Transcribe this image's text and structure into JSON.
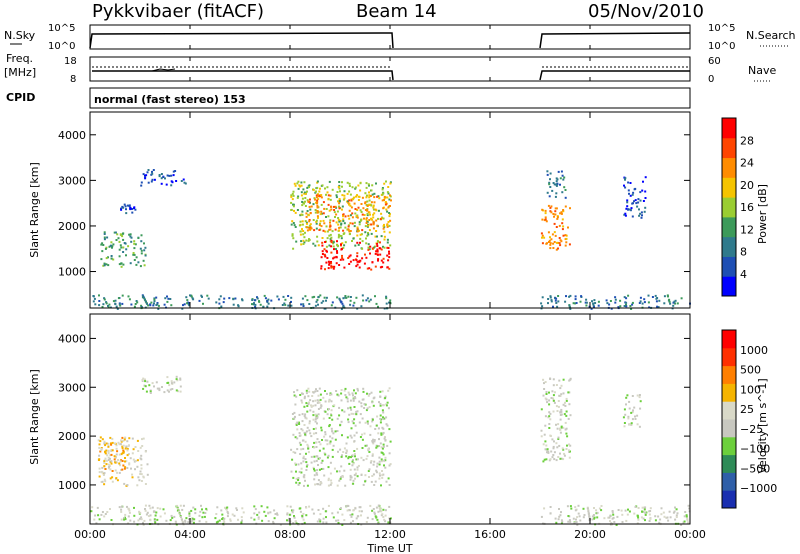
{
  "header": {
    "station": "Pykkvibaer (fitACF)",
    "beam": "Beam 14",
    "date": "05/Nov/2010"
  },
  "status_panels": {
    "nsky_label": "N.Sky",
    "nsearch_label": "N.Search",
    "freq_label_line1": "Freq.",
    "freq_label_line2": "[MHz]",
    "nave_label": "Nave",
    "cpid_label": "CPID",
    "cpid_text": "normal (fast stereo) 153",
    "noise_ticks_left": [
      "10^5",
      "10^0"
    ],
    "noise_ticks_right": [
      "10^5",
      "10^0"
    ],
    "freq_ticks_left": [
      "18",
      "8"
    ],
    "nave_ticks_right": [
      "60",
      "0"
    ]
  },
  "colors": {
    "power_scale": [
      "#0000ff",
      "#1e4fb4",
      "#2f7a8c",
      "#3c9a5a",
      "#9acd32",
      "#f5c400",
      "#ff8c00",
      "#ff4500",
      "#ff0000"
    ],
    "velocity_scale": [
      "#1a2fb0",
      "#2f5fa8",
      "#2e8b57",
      "#6ccf3c",
      "#c8c8c0",
      "#d9d9c8",
      "#f5b400",
      "#ff7f00",
      "#ff3000",
      "#ff0000"
    ]
  },
  "chart_data": [
    {
      "type": "heatmap",
      "name_key": "power",
      "ylabel": "Slant Range [km]",
      "ylim": [
        200,
        4500
      ],
      "xlim": [
        0,
        24
      ],
      "yticks": [
        1000,
        2000,
        3000,
        4000
      ],
      "colorbar_label": "Power [dB]",
      "colorbar_ticks": [
        "28",
        "24",
        "20",
        "16",
        "12",
        "8",
        "4"
      ],
      "observation_gap_hours": [
        12,
        18
      ],
      "regions": [
        {
          "t0": 0.4,
          "t1": 2.2,
          "r0": 1100,
          "r1": 1900,
          "level": 3
        },
        {
          "t0": 1.2,
          "t1": 1.8,
          "r0": 2300,
          "r1": 2500,
          "level": 1
        },
        {
          "t0": 2.0,
          "t1": 3.8,
          "r0": 2900,
          "r1": 3250,
          "level": 1
        },
        {
          "t0": 8.0,
          "t1": 12.0,
          "r0": 1500,
          "r1": 3000,
          "level": 4
        },
        {
          "t0": 8.6,
          "t1": 12.0,
          "r0": 1900,
          "r1": 2700,
          "level": 6
        },
        {
          "t0": 9.2,
          "t1": 12.0,
          "r0": 1050,
          "r1": 1700,
          "level": 8
        },
        {
          "t0": 18.0,
          "t1": 19.2,
          "r0": 1500,
          "r1": 2500,
          "level": 6
        },
        {
          "t0": 18.2,
          "t1": 19.0,
          "r0": 2600,
          "r1": 3250,
          "level": 2
        },
        {
          "t0": 21.3,
          "t1": 22.2,
          "r0": 2200,
          "r1": 3100,
          "level": 1
        },
        {
          "t0": 0.0,
          "t1": 12.0,
          "r0": 200,
          "r1": 500,
          "level": 2
        },
        {
          "t0": 18.0,
          "t1": 24.0,
          "r0": 200,
          "r1": 500,
          "level": 2
        }
      ]
    },
    {
      "type": "heatmap",
      "name_key": "velocity",
      "ylabel": "Slant Range [km]",
      "xlabel": "Time UT",
      "ylim": [
        200,
        4500
      ],
      "xlim": [
        0,
        24
      ],
      "yticks": [
        1000,
        2000,
        3000,
        4000
      ],
      "xticks": [
        "00:00",
        "04:00",
        "08:00",
        "12:00",
        "16:00",
        "20:00",
        "00:00"
      ],
      "xtick_values": [
        0,
        4,
        8,
        12,
        16,
        20,
        24
      ],
      "colorbar_label": "Velocity [m s^-1]",
      "colorbar_ticks": [
        "1000",
        "500",
        "100",
        "25",
        "−25",
        "−100",
        "−500",
        "−1000"
      ],
      "observation_gap_hours": [
        12,
        18
      ],
      "regions": [
        {
          "t0": 0.3,
          "t1": 2.3,
          "r0": 1000,
          "r1": 2000,
          "level": 5
        },
        {
          "t0": 0.3,
          "t1": 1.4,
          "r0": 1300,
          "r1": 2000,
          "level": 6
        },
        {
          "t0": 2.0,
          "t1": 3.8,
          "r0": 2900,
          "r1": 3250,
          "level": 4
        },
        {
          "t0": 8.0,
          "t1": 12.0,
          "r0": 1000,
          "r1": 3000,
          "level": 4
        },
        {
          "t0": 18.0,
          "t1": 19.2,
          "r0": 1500,
          "r1": 3200,
          "level": 4
        },
        {
          "t0": 21.3,
          "t1": 22.0,
          "r0": 2200,
          "r1": 2900,
          "level": 4
        },
        {
          "t0": 0.0,
          "t1": 12.0,
          "r0": 200,
          "r1": 600,
          "level": 4
        },
        {
          "t0": 18.0,
          "t1": 24.0,
          "r0": 200,
          "r1": 600,
          "level": 4
        }
      ]
    }
  ]
}
